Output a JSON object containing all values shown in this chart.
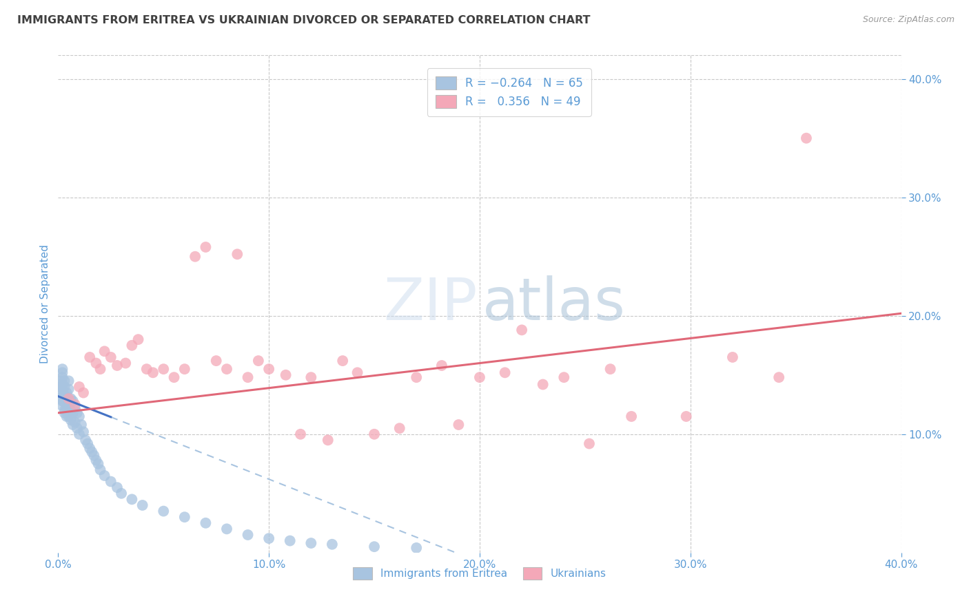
{
  "title": "IMMIGRANTS FROM ERITREA VS UKRAINIAN DIVORCED OR SEPARATED CORRELATION CHART",
  "source_text": "Source: ZipAtlas.com",
  "ylabel": "Divorced or Separated",
  "r_blue": -0.264,
  "n_blue": 65,
  "r_pink": 0.356,
  "n_pink": 49,
  "xlim": [
    0.0,
    0.4
  ],
  "ylim": [
    0.0,
    0.42
  ],
  "xticks": [
    0.0,
    0.1,
    0.2,
    0.3,
    0.4
  ],
  "yticks_right": [
    0.1,
    0.2,
    0.3,
    0.4
  ],
  "xticklabels": [
    "0.0%",
    "10.0%",
    "20.0%",
    "30.0%",
    "40.0%"
  ],
  "yticklabels_right": [
    "10.0%",
    "20.0%",
    "30.0%",
    "40.0%"
  ],
  "color_blue": "#a8c4e0",
  "color_pink": "#f4a8b8",
  "line_blue": "#4472c4",
  "line_pink": "#e06878",
  "title_color": "#404040",
  "axis_label_color": "#5b9bd5",
  "tick_color": "#5b9bd5",
  "grid_color": "#c8c8c8",
  "bg_color": "#ffffff",
  "blue_scatter_x": [
    0.001,
    0.001,
    0.001,
    0.001,
    0.001,
    0.002,
    0.002,
    0.002,
    0.002,
    0.002,
    0.002,
    0.002,
    0.003,
    0.003,
    0.003,
    0.003,
    0.003,
    0.003,
    0.004,
    0.004,
    0.004,
    0.004,
    0.005,
    0.005,
    0.005,
    0.005,
    0.006,
    0.006,
    0.006,
    0.007,
    0.007,
    0.007,
    0.008,
    0.008,
    0.009,
    0.009,
    0.01,
    0.01,
    0.011,
    0.012,
    0.013,
    0.014,
    0.015,
    0.016,
    0.017,
    0.018,
    0.019,
    0.02,
    0.022,
    0.025,
    0.028,
    0.03,
    0.035,
    0.04,
    0.05,
    0.06,
    0.07,
    0.08,
    0.09,
    0.1,
    0.11,
    0.12,
    0.13,
    0.15,
    0.17
  ],
  "blue_scatter_y": [
    0.135,
    0.14,
    0.145,
    0.13,
    0.125,
    0.148,
    0.152,
    0.138,
    0.132,
    0.142,
    0.155,
    0.128,
    0.14,
    0.133,
    0.145,
    0.12,
    0.118,
    0.127,
    0.135,
    0.128,
    0.122,
    0.115,
    0.145,
    0.138,
    0.125,
    0.115,
    0.13,
    0.12,
    0.112,
    0.128,
    0.118,
    0.108,
    0.122,
    0.11,
    0.118,
    0.105,
    0.115,
    0.1,
    0.108,
    0.102,
    0.095,
    0.092,
    0.088,
    0.085,
    0.082,
    0.078,
    0.075,
    0.07,
    0.065,
    0.06,
    0.055,
    0.05,
    0.045,
    0.04,
    0.035,
    0.03,
    0.025,
    0.02,
    0.015,
    0.012,
    0.01,
    0.008,
    0.007,
    0.005,
    0.004
  ],
  "pink_scatter_x": [
    0.005,
    0.008,
    0.01,
    0.012,
    0.015,
    0.018,
    0.02,
    0.022,
    0.025,
    0.028,
    0.032,
    0.035,
    0.038,
    0.042,
    0.045,
    0.05,
    0.055,
    0.06,
    0.065,
    0.07,
    0.075,
    0.08,
    0.085,
    0.09,
    0.095,
    0.1,
    0.108,
    0.115,
    0.12,
    0.128,
    0.135,
    0.142,
    0.15,
    0.162,
    0.17,
    0.182,
    0.19,
    0.2,
    0.212,
    0.22,
    0.23,
    0.24,
    0.252,
    0.262,
    0.272,
    0.298,
    0.32,
    0.342,
    0.355
  ],
  "pink_scatter_y": [
    0.13,
    0.125,
    0.14,
    0.135,
    0.165,
    0.16,
    0.155,
    0.17,
    0.165,
    0.158,
    0.16,
    0.175,
    0.18,
    0.155,
    0.152,
    0.155,
    0.148,
    0.155,
    0.25,
    0.258,
    0.162,
    0.155,
    0.252,
    0.148,
    0.162,
    0.155,
    0.15,
    0.1,
    0.148,
    0.095,
    0.162,
    0.152,
    0.1,
    0.105,
    0.148,
    0.158,
    0.108,
    0.148,
    0.152,
    0.188,
    0.142,
    0.148,
    0.092,
    0.155,
    0.115,
    0.115,
    0.165,
    0.148,
    0.35
  ],
  "blue_line_x0": 0.0,
  "blue_line_x_solid_end": 0.025,
  "blue_line_x_dash_end": 0.38,
  "blue_line_y0": 0.132,
  "blue_line_slope": -0.7,
  "pink_line_x0": 0.0,
  "pink_line_x_end": 0.4,
  "pink_line_y0": 0.118,
  "pink_line_slope": 0.21
}
